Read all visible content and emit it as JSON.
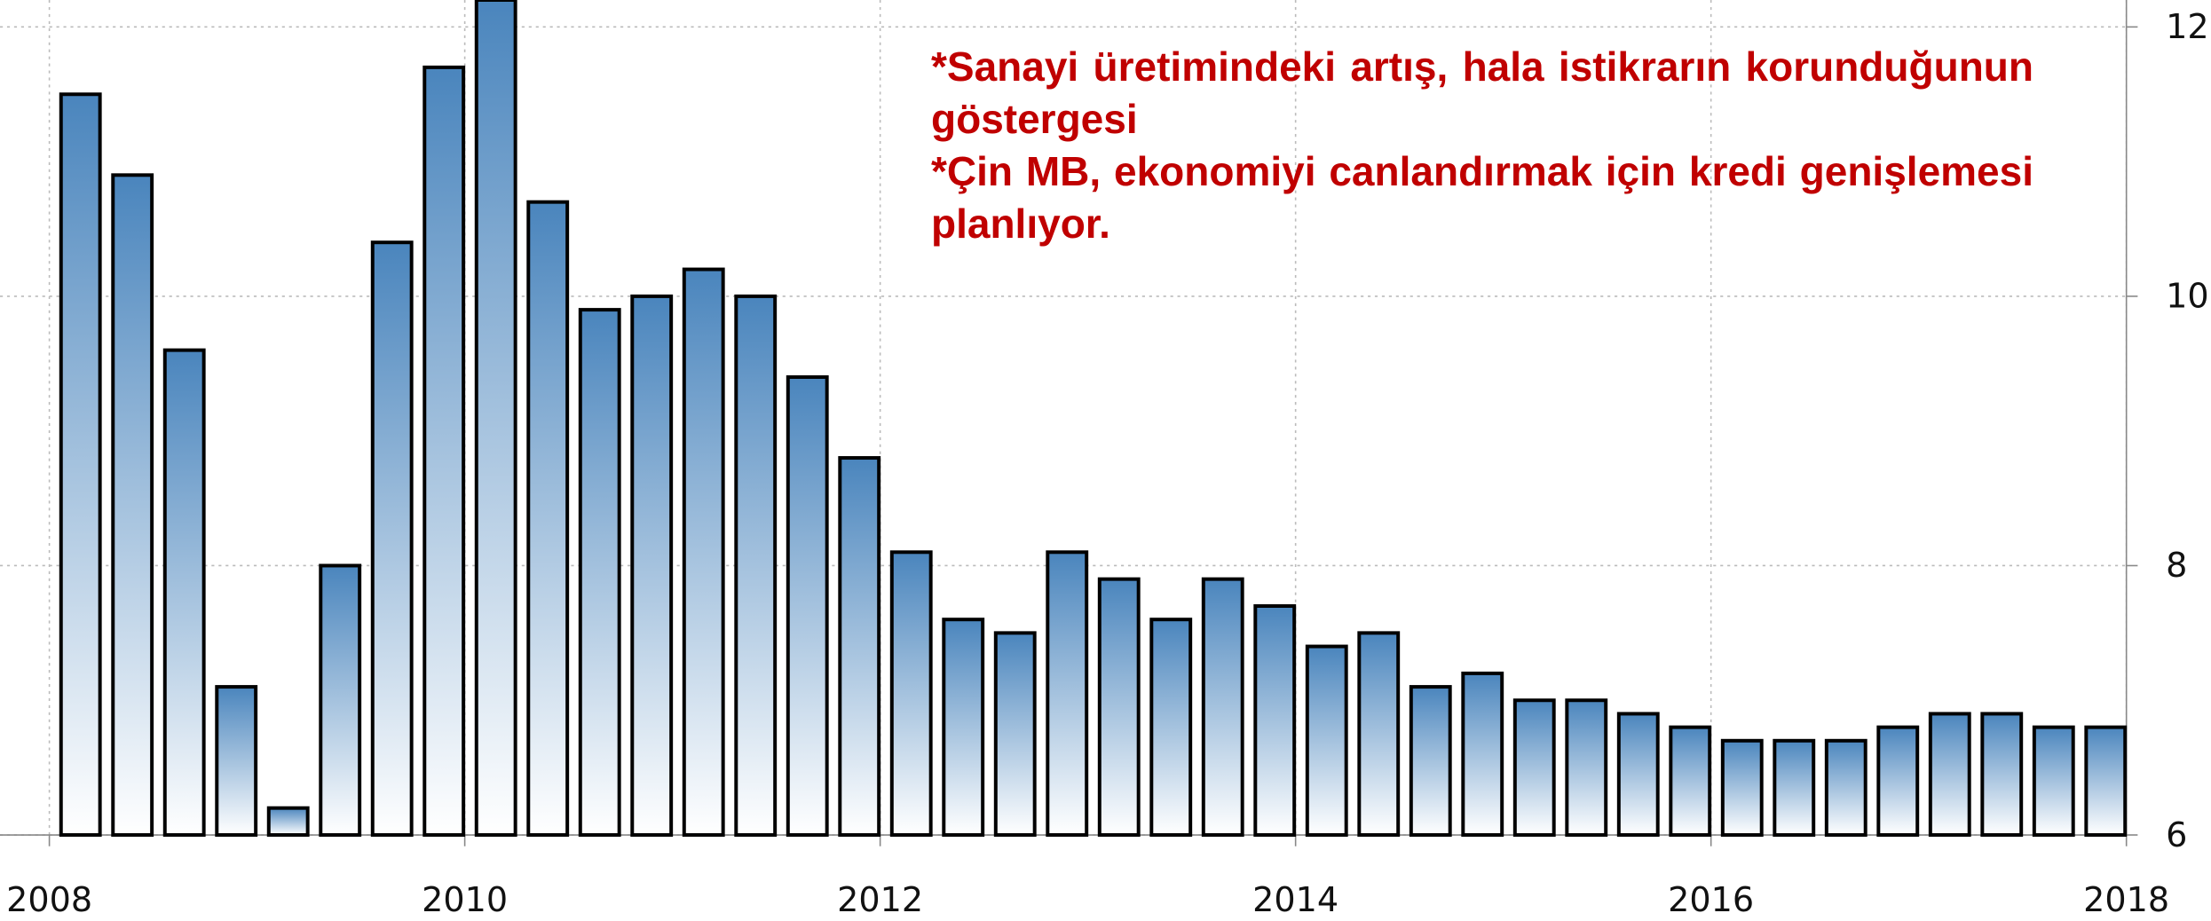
{
  "chart_data": {
    "type": "bar",
    "x": [
      2008.15,
      2008.4,
      2008.65,
      2008.9,
      2009.15,
      2009.4,
      2009.65,
      2009.9,
      2010.15,
      2010.4,
      2010.65,
      2010.9,
      2011.15,
      2011.4,
      2011.65,
      2011.9,
      2012.15,
      2012.4,
      2012.65,
      2012.9,
      2013.15,
      2013.4,
      2013.65,
      2013.9,
      2014.15,
      2014.4,
      2014.65,
      2014.9,
      2015.15,
      2015.4,
      2015.65,
      2015.9,
      2016.15,
      2016.4,
      2016.65,
      2016.9,
      2017.15,
      2017.4,
      2017.65,
      2017.9
    ],
    "values": [
      11.5,
      10.9,
      9.6,
      7.1,
      6.2,
      8.0,
      10.4,
      11.7,
      12.2,
      10.7,
      9.9,
      10.0,
      10.2,
      10.0,
      9.4,
      8.8,
      8.1,
      7.6,
      7.5,
      8.1,
      7.9,
      7.6,
      7.9,
      7.7,
      7.4,
      7.5,
      7.1,
      7.2,
      7.0,
      7.0,
      6.9,
      6.8,
      6.7,
      6.7,
      6.7,
      6.8,
      6.9,
      6.9,
      6.8,
      6.8
    ],
    "color": "#4a85bd",
    "xlim": [
      2008,
      2018
    ],
    "xticks": [
      2008,
      2010,
      2012,
      2014,
      2016,
      2018
    ],
    "ylim": [
      6,
      12.2
    ],
    "yticks": [
      6,
      8,
      10,
      12
    ],
    "grid": true,
    "annotations": [
      "*Sanayi üretimindeki artış, hala istikrarın korunduğunun göstergesi",
      "*Çin MB, ekonomiyi canlandırmak için kredi genişlemesi planlıyor."
    ]
  }
}
